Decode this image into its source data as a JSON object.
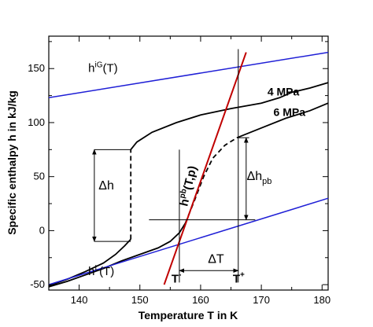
{
  "chart_data": {
    "type": "line",
    "title": "",
    "xlabel": "Temperature T in K",
    "ylabel": "Specific enthalpy h in kJ/kg",
    "xlim": [
      135,
      181
    ],
    "ylim": [
      -55,
      180
    ],
    "xticks": [
      140,
      150,
      160,
      170,
      180
    ],
    "yticks": [
      -50,
      0,
      50,
      100,
      150
    ],
    "grid": false,
    "legend": "none",
    "colors": {
      "ideal_gas": "#1f1fd6",
      "liquid": "#1f1fd6",
      "pseudo_boiling": "#c00000",
      "isobar": "#000000",
      "guide": "#000000"
    },
    "series": [
      {
        "name": "4 MPa",
        "color": "#000000",
        "dash": false,
        "points": [
          [
            135,
            -51
          ],
          [
            138,
            -45
          ],
          [
            141,
            -38
          ],
          [
            144,
            -30
          ],
          [
            146,
            -22
          ],
          [
            147.5,
            -14
          ],
          [
            148.5,
            -8
          ]
        ]
      },
      {
        "name": "4 MPa",
        "color": "#000000",
        "dash": true,
        "points": [
          [
            148.5,
            -8
          ],
          [
            148.5,
            75
          ]
        ]
      },
      {
        "name": "4 MPa",
        "color": "#000000",
        "dash": false,
        "points": [
          [
            148.5,
            75
          ],
          [
            149.5,
            82
          ],
          [
            152,
            91
          ],
          [
            156,
            100
          ],
          [
            160,
            107
          ],
          [
            165,
            113
          ],
          [
            170,
            118
          ],
          [
            173,
            123
          ],
          [
            175,
            128
          ],
          [
            178,
            132
          ],
          [
            181,
            137
          ]
        ]
      },
      {
        "name": "6 MPa",
        "color": "#000000",
        "dash": false,
        "points": [
          [
            135,
            -52
          ],
          [
            138,
            -47
          ],
          [
            141,
            -41
          ],
          [
            144,
            -35
          ],
          [
            147,
            -28
          ],
          [
            150,
            -22
          ],
          [
            153,
            -16
          ],
          [
            155,
            -10
          ],
          [
            156.5,
            -2
          ],
          [
            157.5,
            7
          ]
        ]
      },
      {
        "name": "6 MPa",
        "color": "#000000",
        "dash": true,
        "points": [
          [
            157.5,
            7
          ],
          [
            159,
            28
          ],
          [
            160.5,
            50
          ],
          [
            162,
            67
          ],
          [
            164,
            79
          ],
          [
            166,
            86
          ]
        ]
      },
      {
        "name": "6 MPa",
        "color": "#000000",
        "dash": false,
        "points": [
          [
            166,
            86
          ],
          [
            170,
            95
          ],
          [
            174,
            104
          ],
          [
            178,
            111
          ],
          [
            181,
            118
          ]
        ]
      },
      {
        "name": "hiG(T)",
        "color": "#1f1fd6",
        "dash": false,
        "points": [
          [
            135,
            123
          ],
          [
            181,
            165
          ]
        ]
      },
      {
        "name": "hL(T)",
        "color": "#1f1fd6",
        "dash": false,
        "points": [
          [
            135,
            -50
          ],
          [
            181,
            30
          ]
        ]
      },
      {
        "name": "hpb(T,p)",
        "color": "#c00000",
        "dash": false,
        "points": [
          [
            154,
            -50
          ],
          [
            167.5,
            165
          ]
        ]
      }
    ],
    "annotations": {
      "hiG": {
        "main": "h",
        "sup": "iG",
        "rest": "(T)",
        "x": 141.5,
        "y": 147,
        "color": "#1f1fd6"
      },
      "hL": {
        "main": "h",
        "sup": "L",
        "rest": "(T)",
        "x": 141.5,
        "y": -41,
        "color": "#1f1fd6"
      },
      "hpb": {
        "main": "h",
        "sup": "pb",
        "rest": "(T,p)",
        "x": 157.8,
        "y": 22,
        "color": "#c00000",
        "rotate": -77
      },
      "p4": {
        "text": "4 MPa",
        "x": 171,
        "y": 125
      },
      "p6": {
        "text": "6 MPa",
        "x": 172,
        "y": 106
      },
      "dh": {
        "text": "Δh",
        "x": 143.2,
        "y": 38
      },
      "dhpb": {
        "main": "Δh",
        "sub": "pb",
        "x": 167.6,
        "y": 47
      },
      "dT": {
        "text": "ΔT",
        "x": 161.2,
        "y": -30
      },
      "Tminus": {
        "main": "T",
        "sup": "-",
        "x": 155.2,
        "y": -48
      },
      "Tplus": {
        "main": "T",
        "sup": "+",
        "x": 165.3,
        "y": -48
      }
    },
    "guides": {
      "dh_arrow": {
        "x": 142.5,
        "y_low": -10,
        "y_high": 75
      },
      "dh_top": {
        "x1": 142.5,
        "x2": 148.5,
        "y": 75
      },
      "dh_bottom": {
        "x1": 142.5,
        "x2": 148.5,
        "y": -10
      },
      "dhpb_arrow": {
        "x": 167.5,
        "y_low": 10,
        "y_high": 86
      },
      "dhpb_top": {
        "x1": 166,
        "x2": 168,
        "y": 86
      },
      "pb_horizontal": {
        "x1": 151.5,
        "x2": 169,
        "y": 10
      },
      "Tminus_line": {
        "x": 156.5,
        "y_low": -48,
        "y_high": 75
      },
      "Tplus_line": {
        "x": 166.2,
        "y_low": -48,
        "y_high": 168
      },
      "dT_arrow": {
        "x1": 156.5,
        "x2": 166.2,
        "y": -37
      }
    }
  }
}
